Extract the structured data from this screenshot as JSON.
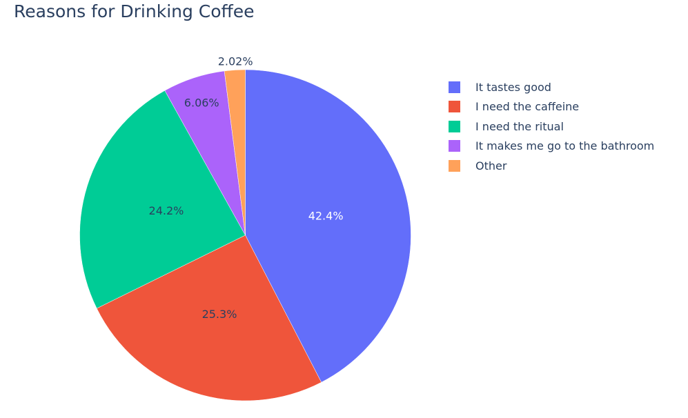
{
  "chart_data": {
    "type": "pie",
    "title": "Reasons for Drinking Coffee",
    "categories": [
      "It tastes good",
      "I need the caffeine",
      "I need the ritual",
      "It makes me go to the bathroom",
      "Other"
    ],
    "values": [
      42.4,
      25.3,
      24.2,
      6.06,
      2.02
    ],
    "labels": [
      "42.4%",
      "25.3%",
      "24.2%",
      "6.06%",
      "2.02%"
    ],
    "colors": [
      "#636efa",
      "#EF553B",
      "#00cc96",
      "#ab63fa",
      "#FFA15A"
    ],
    "label_colors": [
      "#ffffff",
      "#2a3f5f",
      "#2a3f5f",
      "#2a3f5f",
      "#2a3f5f"
    ],
    "direction": "clockwise",
    "start_angle": "top",
    "legend_position": "top-right"
  }
}
